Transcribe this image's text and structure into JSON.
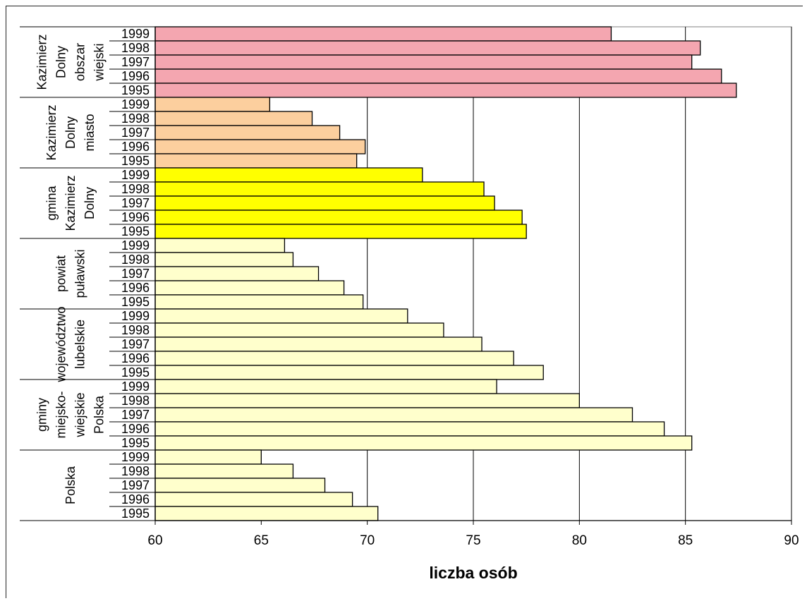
{
  "chart_data": {
    "type": "bar",
    "orientation": "horizontal",
    "xlabel": "liczba osób",
    "xlim": [
      60,
      90
    ],
    "xticks": [
      60,
      65,
      70,
      75,
      80,
      85,
      90
    ],
    "grid": "vertical",
    "groups": [
      {
        "label_lines": [
          "Kazimierz",
          "Dolny",
          "obszar",
          "wiejski"
        ],
        "color": "#f4a6b0",
        "bars": [
          {
            "year": "1999",
            "value": 81.5
          },
          {
            "year": "1998",
            "value": 85.7
          },
          {
            "year": "1997",
            "value": 85.3
          },
          {
            "year": "1996",
            "value": 86.7
          },
          {
            "year": "1995",
            "value": 87.4
          }
        ]
      },
      {
        "label_lines": [
          "Kazimierz",
          "Dolny",
          "miasto"
        ],
        "color": "#fccf9e",
        "bars": [
          {
            "year": "1999",
            "value": 65.4
          },
          {
            "year": "1998",
            "value": 67.4
          },
          {
            "year": "1997",
            "value": 68.7
          },
          {
            "year": "1996",
            "value": 69.9
          },
          {
            "year": "1995",
            "value": 69.5
          }
        ]
      },
      {
        "label_lines": [
          "gmina",
          "Kazimierz",
          "Dolny"
        ],
        "color": "#ffff00",
        "bars": [
          {
            "year": "1999",
            "value": 72.6
          },
          {
            "year": "1998",
            "value": 75.5
          },
          {
            "year": "1997",
            "value": 76.0
          },
          {
            "year": "1996",
            "value": 77.3
          },
          {
            "year": "1995",
            "value": 77.5
          }
        ]
      },
      {
        "label_lines": [
          "powiat",
          "puławski"
        ],
        "color": "#ffffcc",
        "bars": [
          {
            "year": "1999",
            "value": 66.1
          },
          {
            "year": "1998",
            "value": 66.5
          },
          {
            "year": "1997",
            "value": 67.7
          },
          {
            "year": "1996",
            "value": 68.9
          },
          {
            "year": "1995",
            "value": 69.8
          }
        ]
      },
      {
        "label_lines": [
          "województwo",
          "lubelskie"
        ],
        "color": "#ffffcc",
        "bars": [
          {
            "year": "1999",
            "value": 71.9
          },
          {
            "year": "1998",
            "value": 73.6
          },
          {
            "year": "1997",
            "value": 75.4
          },
          {
            "year": "1996",
            "value": 76.9
          },
          {
            "year": "1995",
            "value": 78.3
          }
        ]
      },
      {
        "label_lines": [
          "gminy",
          "miejsko-",
          "wiejskie",
          "Polska"
        ],
        "color": "#ffffcc",
        "bars": [
          {
            "year": "1999",
            "value": 76.1
          },
          {
            "year": "1998",
            "value": 80.0
          },
          {
            "year": "1997",
            "value": 82.5
          },
          {
            "year": "1996",
            "value": 84.0
          },
          {
            "year": "1995",
            "value": 85.3
          }
        ]
      },
      {
        "label_lines": [
          "Polska"
        ],
        "color": "#ffffcc",
        "bars": [
          {
            "year": "1999",
            "value": 65.0
          },
          {
            "year": "1998",
            "value": 66.5
          },
          {
            "year": "1997",
            "value": 68.0
          },
          {
            "year": "1996",
            "value": 69.3
          },
          {
            "year": "1995",
            "value": 70.5
          }
        ]
      }
    ]
  }
}
